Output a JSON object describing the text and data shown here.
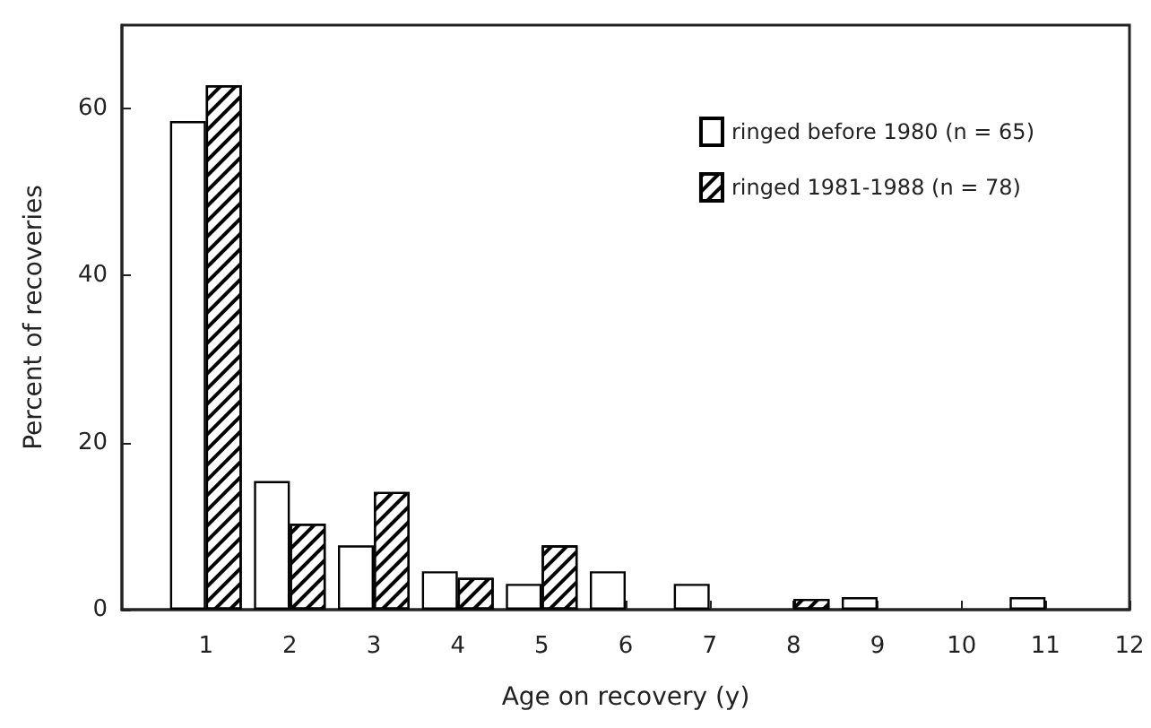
{
  "chart_data": {
    "type": "bar",
    "xlabel": "Age on recovery (y)",
    "ylabel": "Percent of recoveries",
    "x": [
      1,
      2,
      3,
      4,
      5,
      6,
      7,
      8,
      9,
      10,
      11
    ],
    "series": [
      {
        "name": "ringed before 1980 (n = 65)",
        "color": "#ffffff",
        "values": [
          58.5,
          15.4,
          7.7,
          4.6,
          3.1,
          4.6,
          3.1,
          null,
          1.5,
          null,
          1.5
        ]
      },
      {
        "name": "ringed 1981-1988 (n = 78)",
        "color": "#000000",
        "values": [
          62.8,
          10.3,
          14.1,
          3.8,
          7.7,
          null,
          null,
          1.3,
          null,
          null,
          null
        ]
      }
    ],
    "xlim": [
      0,
      12
    ],
    "xticks": [
      1,
      2,
      3,
      4,
      5,
      6,
      7,
      8,
      9,
      10,
      11,
      12
    ],
    "ylim": [
      0,
      70
    ],
    "yticks": [
      0,
      20,
      40,
      60
    ],
    "grid": false,
    "legend": "top right"
  }
}
